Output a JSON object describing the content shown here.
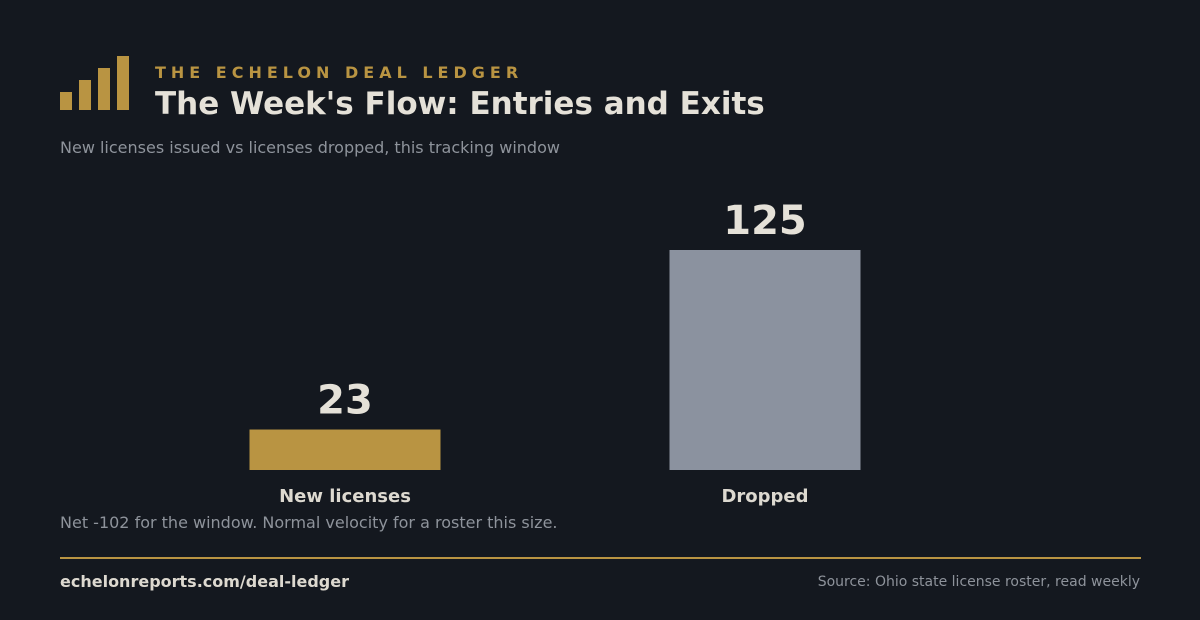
{
  "header": {
    "kicker": "THE ECHELON DEAL LEDGER",
    "title": "The Week's Flow: Entries and Exits",
    "subtitle": "New licenses issued vs licenses dropped, this tracking window",
    "logo_icon": "bar-chart-icon"
  },
  "chart_data": {
    "type": "bar",
    "categories": [
      "New licenses",
      "Dropped"
    ],
    "values": [
      23,
      125
    ],
    "value_labels": [
      "23",
      "125"
    ],
    "colors": [
      "#b99442",
      "#8b929f"
    ],
    "title": "",
    "xlabel": "",
    "ylabel": "",
    "grid": false,
    "legend": "none"
  },
  "note": "Net -102 for the window. Normal velocity for a roster this size.",
  "footer": {
    "link": "echelonreports.com/deal-ledger",
    "source": "Source: Ohio state license roster, read weekly"
  },
  "colors": {
    "background": "#14181f",
    "accent": "#b99442",
    "text": "#e5e1d8",
    "muted": "#8e939b"
  }
}
